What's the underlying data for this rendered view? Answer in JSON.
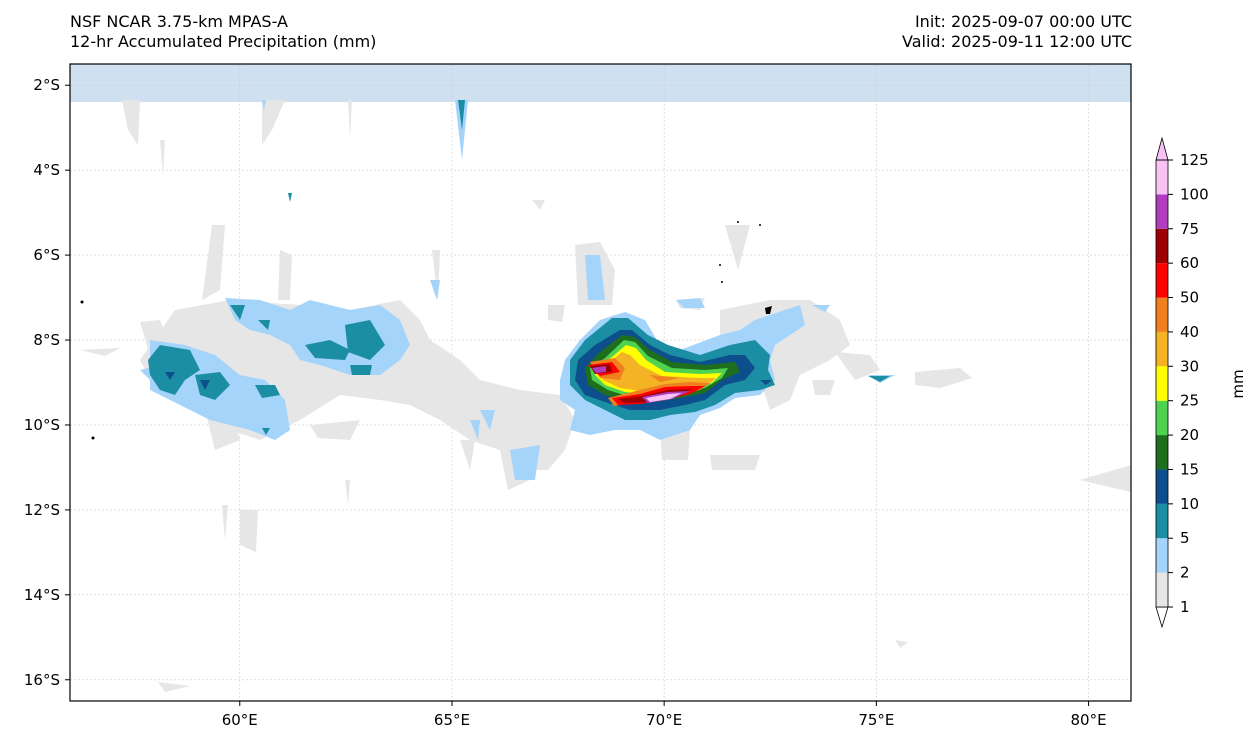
{
  "header": {
    "model": "NSF NCAR 3.75-km MPAS-A",
    "field": "12-hr Accumulated Precipitation (mm)",
    "init": "Init: 2025-09-07 00:00 UTC",
    "valid": "Valid: 2025-09-11 12:00 UTC"
  },
  "axes": {
    "lon_range": [
      56,
      81
    ],
    "lat_range": [
      -16.5,
      -1.5
    ],
    "lon_ticks": [
      {
        "value": 60,
        "label": "60°E"
      },
      {
        "value": 65,
        "label": "65°E"
      },
      {
        "value": 70,
        "label": "70°E"
      },
      {
        "value": 75,
        "label": "75°E"
      },
      {
        "value": 80,
        "label": "80°E"
      }
    ],
    "lat_ticks": [
      {
        "value": -2,
        "label": "2°S"
      },
      {
        "value": -4,
        "label": "4°S"
      },
      {
        "value": -6,
        "label": "6°S"
      },
      {
        "value": -8,
        "label": "8°S"
      },
      {
        "value": -10,
        "label": "10°S"
      },
      {
        "value": -12,
        "label": "12°S"
      },
      {
        "value": -14,
        "label": "14°S"
      },
      {
        "value": -16,
        "label": "16°S"
      }
    ],
    "grid": true
  },
  "colorbar": {
    "unit": "mm",
    "levels": [
      "1",
      "2",
      "5",
      "10",
      "15",
      "20",
      "25",
      "30",
      "40",
      "50",
      "60",
      "75",
      "100",
      "125"
    ],
    "colors": [
      "#ffffff",
      "#e6e6e6",
      "#a5d4fb",
      "#1b8ea3",
      "#0c4f8c",
      "#1e6e1e",
      "#4fd24f",
      "#ffff00",
      "#f4b324",
      "#f07f1f",
      "#ff0000",
      "#9c0000",
      "#b03cc0",
      "#f8c2f4"
    ],
    "extend": "both"
  },
  "map_features": {
    "top_band_color": "#cfe0f1"
  }
}
